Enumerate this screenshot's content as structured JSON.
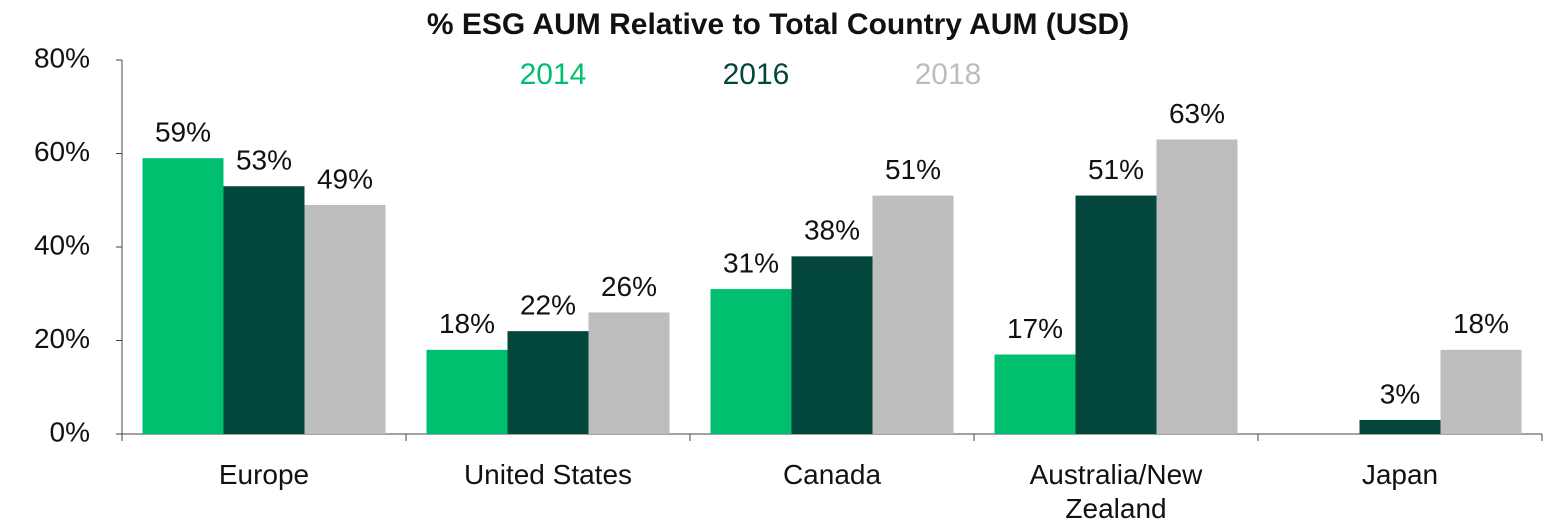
{
  "chart_data": {
    "type": "bar",
    "title": "% ESG AUM Relative to Total Country AUM (USD)",
    "categories": [
      "Europe",
      "United States",
      "Canada",
      "Australia/New Zealand",
      "Japan"
    ],
    "series": [
      {
        "name": "2014",
        "color": "#00bf6f",
        "values": [
          59,
          18,
          31,
          17,
          null
        ],
        "value_labels": [
          "59%",
          "18%",
          "31%",
          "17%",
          null
        ]
      },
      {
        "name": "2016",
        "color": "#03463b",
        "values": [
          53,
          22,
          38,
          51,
          3
        ],
        "value_labels": [
          "53%",
          "22%",
          "38%",
          "51%",
          "3%"
        ]
      },
      {
        "name": "2018",
        "color": "#bcbdbc",
        "values": [
          49,
          26,
          51,
          63,
          18
        ],
        "value_labels": [
          "49%",
          "26%",
          "51%",
          "63%",
          "18%"
        ]
      }
    ],
    "ylim": [
      0,
      80
    ],
    "yticks": [
      {
        "value": 0,
        "label": "0%"
      },
      {
        "value": 20,
        "label": "20%"
      },
      {
        "value": 40,
        "label": "40%"
      },
      {
        "value": 60,
        "label": "60%"
      },
      {
        "value": 80,
        "label": "80%"
      }
    ],
    "legend": "top"
  }
}
